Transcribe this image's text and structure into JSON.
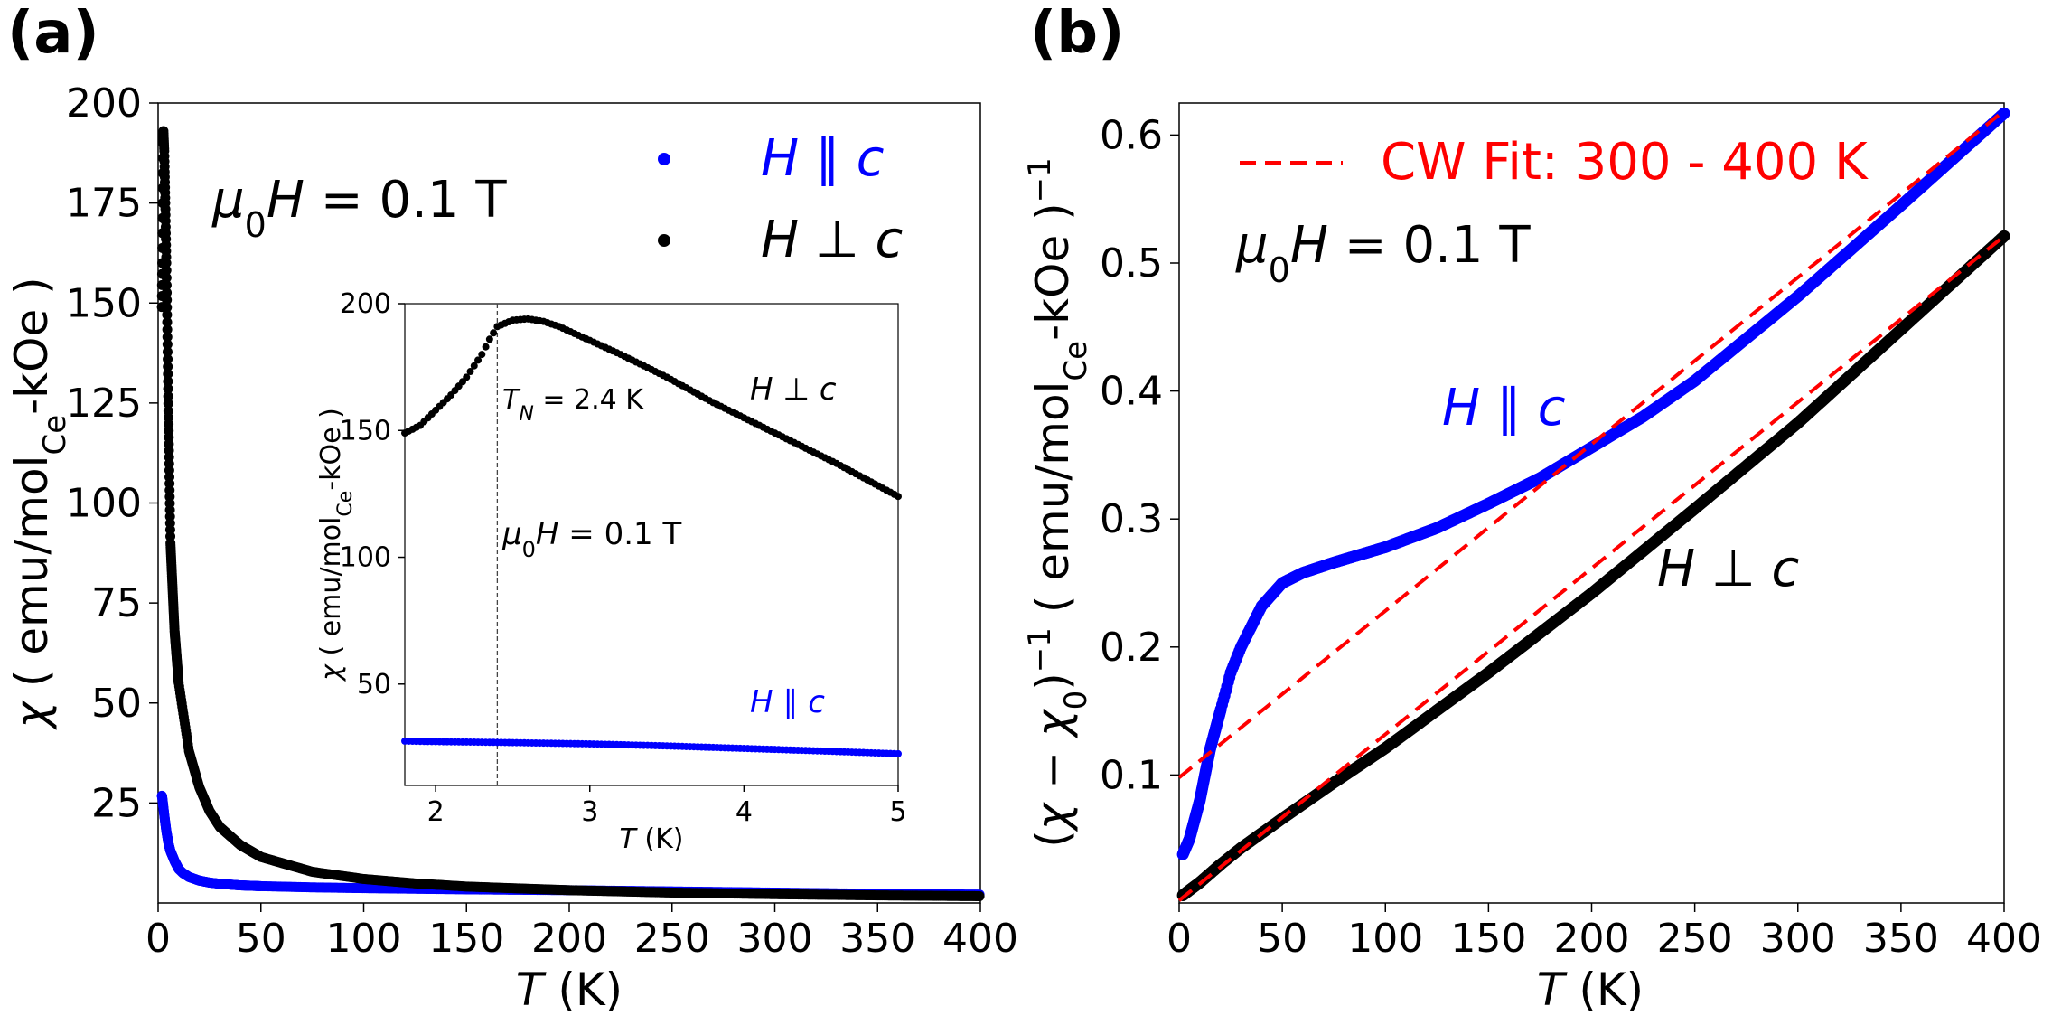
{
  "chart_data": [
    {
      "panel": "(a)",
      "type": "scatter",
      "xlabel": "T (K)",
      "ylabel": "χ ( emu/mol_Ce-kOe )",
      "xlim": [
        0,
        400
      ],
      "ylim": [
        0,
        200
      ],
      "xticks": [
        0,
        50,
        100,
        150,
        200,
        250,
        300,
        350,
        400
      ],
      "yticks": [
        25,
        50,
        75,
        100,
        125,
        150,
        175,
        200
      ],
      "annotation": "μ0H = 0.1 T",
      "legend": {
        "placement": "top-right",
        "entries": [
          "H ∥ c",
          "H ⊥ c"
        ]
      },
      "series": [
        {
          "name": "H ∥ c",
          "color": "#0000ff",
          "x": [
            1.8,
            2,
            3,
            4,
            5,
            6,
            8,
            10,
            12,
            15,
            20,
            25,
            30,
            40,
            50,
            75,
            100,
            150,
            200,
            250,
            300,
            350,
            400
          ],
          "y": [
            26.8,
            26.5,
            22,
            18,
            15,
            13,
            10.5,
            8.5,
            7.5,
            6.5,
            5.6,
            5.1,
            4.8,
            4.4,
            4.2,
            3.9,
            3.7,
            3.4,
            3.2,
            2.9,
            2.6,
            2.3,
            2.1
          ]
        },
        {
          "name": "H ⊥ c",
          "color": "#000000",
          "x": [
            1.8,
            2,
            2.4,
            2.6,
            3,
            3.5,
            4,
            5,
            6,
            8,
            10,
            15,
            20,
            25,
            30,
            40,
            50,
            75,
            100,
            125,
            150,
            200,
            250,
            300,
            350,
            400
          ],
          "y": [
            149,
            160,
            190,
            193,
            188,
            175,
            160,
            123,
            90,
            68,
            55,
            38,
            29,
            23,
            19,
            14.5,
            11.5,
            7.8,
            6,
            4.9,
            4.1,
            3.2,
            2.6,
            2.2,
            1.9,
            1.7
          ]
        }
      ],
      "inset": {
        "xlabel": "T (K)",
        "ylabel": "χ ( emu/mol_Ce-kOe )",
        "xlim": [
          1.8,
          5
        ],
        "ylim": [
          10,
          200
        ],
        "xticks": [
          2,
          3,
          4,
          5
        ],
        "yticks": [
          50,
          100,
          150,
          200
        ],
        "transition_line_x": 2.4,
        "transition_label": "TN = 2.4 K",
        "field_label": "μ0H = 0.1 T",
        "label_perp": "H ⊥ c",
        "label_par": "H ∥ c",
        "series": [
          {
            "name": "H ⊥ c",
            "color": "#000000",
            "x": [
              1.8,
              1.9,
              2.0,
              2.1,
              2.2,
              2.3,
              2.35,
              2.4,
              2.5,
              2.6,
              2.7,
              2.8,
              3.0,
              3.2,
              3.5,
              3.8,
              4.0,
              4.3,
              4.6,
              5.0
            ],
            "y": [
              149,
              152,
              158,
              164,
              171,
              180,
              186,
              191,
              193.5,
              194,
              193,
              191,
              185.5,
              180,
              171,
              161,
              155,
              146,
              137,
              124
            ]
          },
          {
            "name": "H ∥ c",
            "color": "#0000ff",
            "x": [
              1.8,
              2.0,
              2.5,
              3.0,
              3.5,
              4.0,
              4.5,
              5.0
            ],
            "y": [
              27.5,
              27.3,
              26.9,
              26.4,
              25.6,
              24.6,
              23.6,
              22.5
            ]
          }
        ]
      }
    },
    {
      "panel": "(b)",
      "type": "line",
      "xlabel": "T (K)",
      "ylabel": "(χ − χ0)^−1 ( emu/mol_Ce-kOe )^−1",
      "xlim": [
        0,
        400
      ],
      "ylim": [
        0,
        0.625
      ],
      "xticks": [
        0,
        50,
        100,
        150,
        200,
        250,
        300,
        350,
        400
      ],
      "yticks": [
        0.1,
        0.2,
        0.3,
        0.4,
        0.5,
        0.6
      ],
      "annotation": "μ0H = 0.1 T",
      "label_par": "H ∥ c",
      "label_perp": "H ⊥ c",
      "legend": {
        "placement": "top-left",
        "entries": [
          "CW Fit: 300 - 400 K"
        ]
      },
      "series": [
        {
          "name": "H ∥ c",
          "color": "#0000ff",
          "x": [
            1.8,
            5,
            10,
            15,
            20,
            25,
            30,
            40,
            50,
            60,
            75,
            100,
            125,
            150,
            175,
            200,
            225,
            250,
            300,
            350,
            400
          ],
          "y": [
            0.038,
            0.05,
            0.08,
            0.12,
            0.15,
            0.18,
            0.2,
            0.232,
            0.25,
            0.258,
            0.266,
            0.278,
            0.293,
            0.312,
            0.332,
            0.356,
            0.38,
            0.408,
            0.474,
            0.545,
            0.617
          ]
        },
        {
          "name": "H ⊥ c",
          "color": "#000000",
          "x": [
            1.8,
            5,
            10,
            20,
            30,
            50,
            75,
            100,
            150,
            200,
            250,
            300,
            350,
            400
          ],
          "y": [
            0.006,
            0.01,
            0.016,
            0.03,
            0.043,
            0.066,
            0.094,
            0.121,
            0.18,
            0.242,
            0.308,
            0.375,
            0.448,
            0.521
          ]
        },
        {
          "name": "CW Fit: 300 - 400 K",
          "color": "#ff0000",
          "style": "dashed",
          "x": [
            0,
            400
          ],
          "y": [
            0.098,
            0.619
          ]
        },
        {
          "name": "CW Fit: 300 - 400 K",
          "color": "#ff0000",
          "style": "dashed",
          "x": [
            0,
            400
          ],
          "y": [
            0.002,
            0.521
          ]
        }
      ]
    }
  ]
}
